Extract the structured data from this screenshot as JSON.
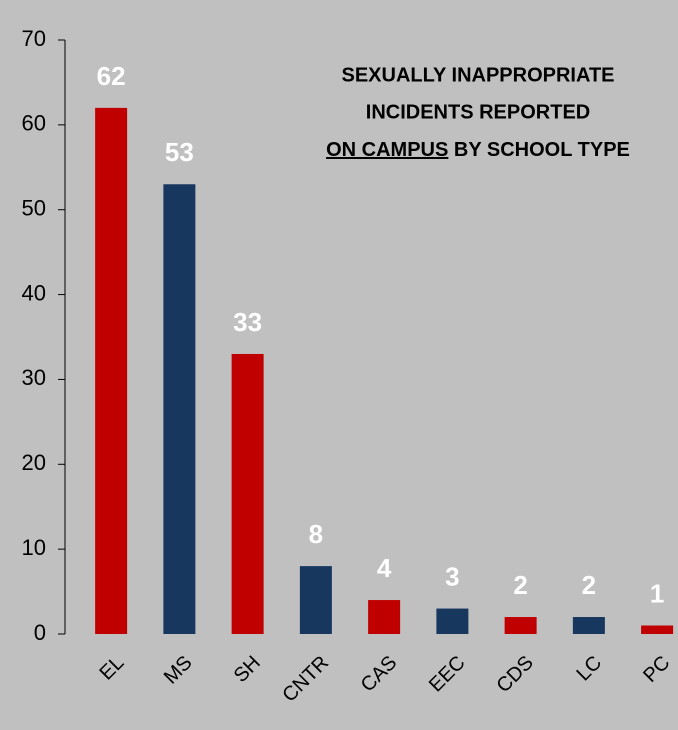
{
  "chart_data": {
    "type": "bar",
    "title": [
      "SEXUALLY INAPPROPRIATE",
      "INCIDENTS REPORTED",
      "ON CAMPUS",
      "BY SCHOOL TYPE"
    ],
    "categories": [
      "EL",
      "MS",
      "SH",
      "CNTR",
      "CAS",
      "EEC",
      "CDS",
      "LC",
      "PC"
    ],
    "values": [
      62,
      53,
      33,
      8,
      4,
      3,
      2,
      2,
      1
    ],
    "colors": [
      "#c00000",
      "#17375e",
      "#c00000",
      "#17375e",
      "#c00000",
      "#17375e",
      "#c00000",
      "#17375e",
      "#c00000"
    ],
    "ylim": [
      0,
      70
    ],
    "yticks": [
      0,
      10,
      20,
      30,
      40,
      50,
      60,
      70
    ],
    "grid": false
  }
}
